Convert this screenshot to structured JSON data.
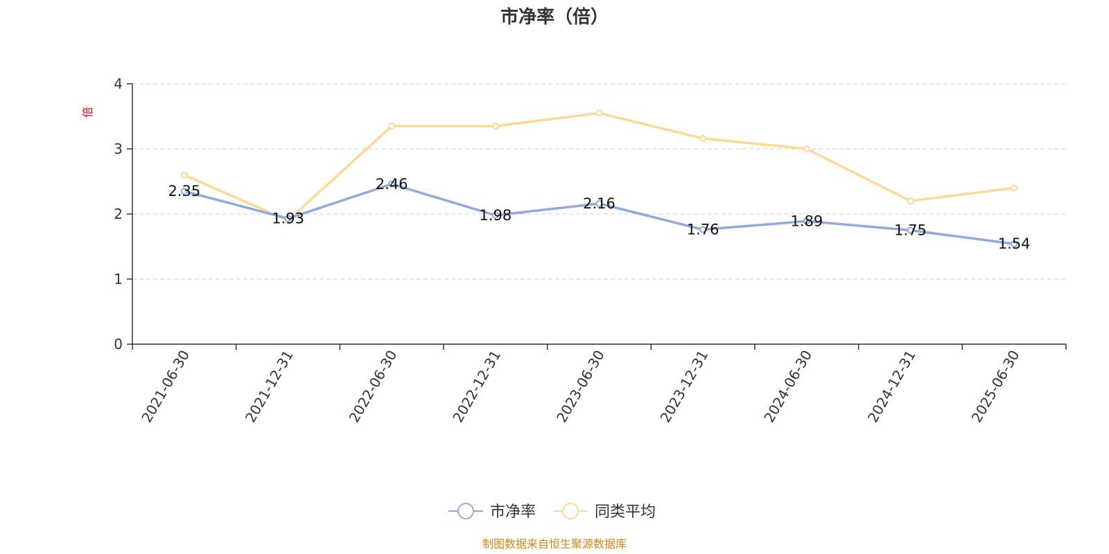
{
  "chart_data": {
    "type": "line",
    "title": "市净率（倍）",
    "ylabel": "倍",
    "ylim": [
      0,
      4
    ],
    "yticks": [
      0,
      1,
      2,
      3,
      4
    ],
    "grid": true,
    "categories": [
      "2021-06-30",
      "2021-12-31",
      "2022-06-30",
      "2022-12-31",
      "2023-06-30",
      "2023-12-31",
      "2024-06-30",
      "2024-12-31",
      "2025-06-30"
    ],
    "series": [
      {
        "name": "市净率",
        "color": "#8faadc",
        "values": [
          2.35,
          1.93,
          2.46,
          1.98,
          2.16,
          1.76,
          1.89,
          1.75,
          1.54
        ],
        "labels": [
          "2.35",
          "1.93",
          "2.46",
          "1.98",
          "2.16",
          "1.76",
          "1.89",
          "1.75",
          "1.54"
        ]
      },
      {
        "name": "同类平均",
        "color": "#fdd995",
        "values": [
          2.6,
          1.9,
          3.35,
          3.35,
          3.55,
          3.16,
          3.0,
          2.2,
          2.4
        ]
      }
    ],
    "legend_position": "bottom-center",
    "source": "制图数据来自恒生聚源数据库"
  }
}
